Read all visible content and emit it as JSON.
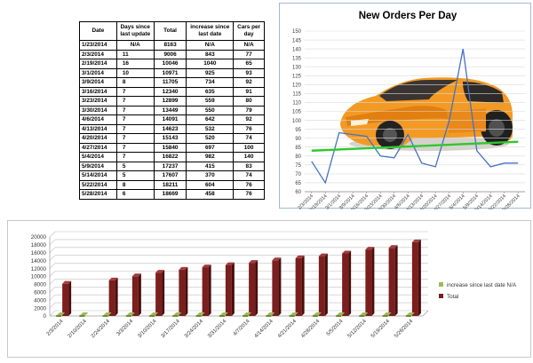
{
  "table": {
    "headers": [
      "Date",
      "Days since last update",
      "Total",
      "increase since last date",
      "Cars per day"
    ],
    "rows": [
      [
        "1/23/2014",
        "N/A",
        "8163",
        "N/A",
        "N/A"
      ],
      [
        "2/3/2014",
        "11",
        "9006",
        "843",
        "77"
      ],
      [
        "2/19/2014",
        "16",
        "10046",
        "1040",
        "65"
      ],
      [
        "3/1/2014",
        "10",
        "10971",
        "925",
        "93"
      ],
      [
        "3/9/2014",
        "8",
        "11705",
        "734",
        "92"
      ],
      [
        "3/16/2014",
        "7",
        "12340",
        "635",
        "91"
      ],
      [
        "3/23/2014",
        "7",
        "12899",
        "559",
        "80"
      ],
      [
        "3/30/2014",
        "7",
        "13449",
        "550",
        "79"
      ],
      [
        "4/6/2014",
        "7",
        "14091",
        "642",
        "92"
      ],
      [
        "4/13/2014",
        "7",
        "14623",
        "532",
        "76"
      ],
      [
        "4/20/2014",
        "7",
        "15143",
        "520",
        "74"
      ],
      [
        "4/27/2014",
        "7",
        "15840",
        "697",
        "100"
      ],
      [
        "5/4/2014",
        "7",
        "16822",
        "982",
        "140"
      ],
      [
        "5/9/2014",
        "5",
        "17237",
        "415",
        "83"
      ],
      [
        "5/14/2014",
        "5",
        "17607",
        "370",
        "74"
      ],
      [
        "5/22/2014",
        "8",
        "18211",
        "604",
        "76"
      ],
      [
        "5/28/2014",
        "6",
        "18669",
        "458",
        "76"
      ]
    ]
  },
  "chart_data": [
    {
      "type": "line",
      "title": "New Orders Per Day",
      "x": [
        "2/3/2014",
        "2/19/2014",
        "3/1/2014",
        "3/9/2014",
        "3/16/2014",
        "3/23/2014",
        "3/30/2014",
        "4/6/2014",
        "4/13/2014",
        "4/20/2014",
        "4/27/2014",
        "5/4/2014",
        "5/9/2014",
        "5/14/2014",
        "5/22/2014",
        "5/28/2014"
      ],
      "ylim": [
        60,
        150
      ],
      "yticks": [
        60,
        65,
        70,
        75,
        80,
        85,
        90,
        95,
        100,
        105,
        110,
        115,
        120,
        125,
        130,
        135,
        140,
        145,
        150
      ],
      "series": [
        {
          "values": [
            77,
            65,
            93,
            92,
            91,
            80,
            79,
            92,
            76,
            74,
            100,
            140,
            83,
            74,
            76,
            76
          ],
          "color": "#4472c4"
        }
      ],
      "trendline": {
        "from": 83,
        "to": 88,
        "color": "#2ec82e"
      },
      "grid": true,
      "background_image": "orange-three-wheel-car"
    },
    {
      "type": "bar",
      "categories": [
        "2/3/2014",
        "2/10/2014",
        "2/24/2014",
        "3/3/2014",
        "3/10/2014",
        "3/17/2014",
        "3/24/2014",
        "3/31/2014",
        "4/7/2014",
        "4/14/2014",
        "4/21/2014",
        "4/28/2014",
        "5/5/2014",
        "5/12/2014",
        "5/19/2014",
        "5/26/2014"
      ],
      "ylim": [
        0,
        20000
      ],
      "yticks": [
        0,
        2000,
        4000,
        6000,
        8000,
        10000,
        12000,
        14000,
        16000,
        18000,
        20000
      ],
      "series": [
        {
          "name": "Total",
          "values": [
            8163,
            null,
            9006,
            10046,
            10971,
            11705,
            12340,
            12899,
            13449,
            14091,
            14623,
            15143,
            15840,
            16822,
            17237,
            18669
          ],
          "color": "#7b1e1e"
        },
        {
          "name": "increase since last date N/A",
          "values": [
            0,
            0,
            0,
            0,
            0,
            0,
            0,
            0,
            0,
            0,
            0,
            0,
            0,
            0,
            0,
            0
          ],
          "color": "#9bbb59"
        }
      ],
      "legend": "right",
      "grid": true
    }
  ]
}
